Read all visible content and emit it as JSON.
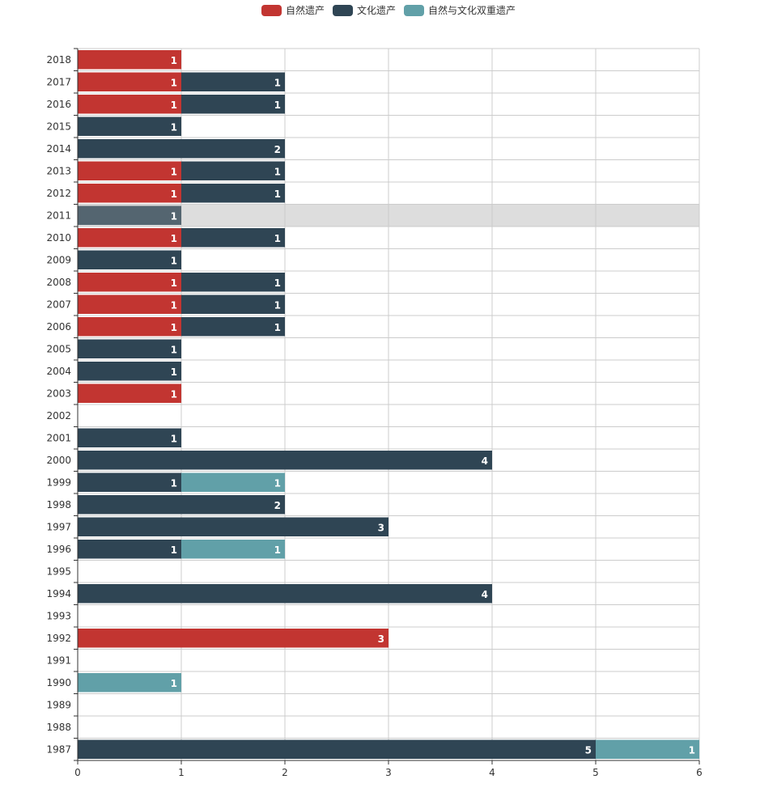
{
  "chart_data": {
    "type": "bar",
    "orientation": "horizontal",
    "stacked": true,
    "title": "",
    "xlabel": "",
    "ylabel": "",
    "categories": [
      "1987",
      "1988",
      "1989",
      "1990",
      "1991",
      "1992",
      "1993",
      "1994",
      "1995",
      "1996",
      "1997",
      "1998",
      "1999",
      "2000",
      "2001",
      "2002",
      "2003",
      "2004",
      "2005",
      "2006",
      "2007",
      "2008",
      "2009",
      "2010",
      "2011",
      "2012",
      "2013",
      "2014",
      "2015",
      "2016",
      "2017",
      "2018"
    ],
    "series": [
      {
        "name": "自然遗产",
        "color": "#c23531",
        "values": [
          0,
          0,
          0,
          0,
          0,
          3,
          0,
          0,
          0,
          0,
          0,
          0,
          0,
          0,
          0,
          0,
          1,
          0,
          0,
          1,
          1,
          1,
          0,
          1,
          0,
          1,
          1,
          0,
          0,
          1,
          1,
          1
        ]
      },
      {
        "name": "文化遗产",
        "color": "#2f4554",
        "values": [
          5,
          0,
          0,
          0,
          0,
          0,
          0,
          4,
          0,
          1,
          3,
          2,
          1,
          4,
          1,
          0,
          0,
          1,
          1,
          1,
          1,
          1,
          1,
          1,
          1,
          1,
          1,
          2,
          1,
          1,
          1,
          0
        ]
      },
      {
        "name": "自然与文化双重遗产",
        "color": "#61a0a8",
        "values": [
          1,
          0,
          0,
          1,
          0,
          0,
          0,
          0,
          0,
          1,
          0,
          0,
          1,
          0,
          0,
          0,
          0,
          0,
          0,
          0,
          0,
          0,
          0,
          0,
          0,
          0,
          0,
          0,
          0,
          0,
          0,
          0
        ]
      }
    ],
    "xlim": [
      0,
      6
    ],
    "xticks": [
      "0",
      "1",
      "2",
      "3",
      "4",
      "5",
      "6"
    ],
    "grid": true,
    "legend_position": "top-center",
    "highlighted_category": "2011",
    "highlight_color": "#dddddd"
  }
}
